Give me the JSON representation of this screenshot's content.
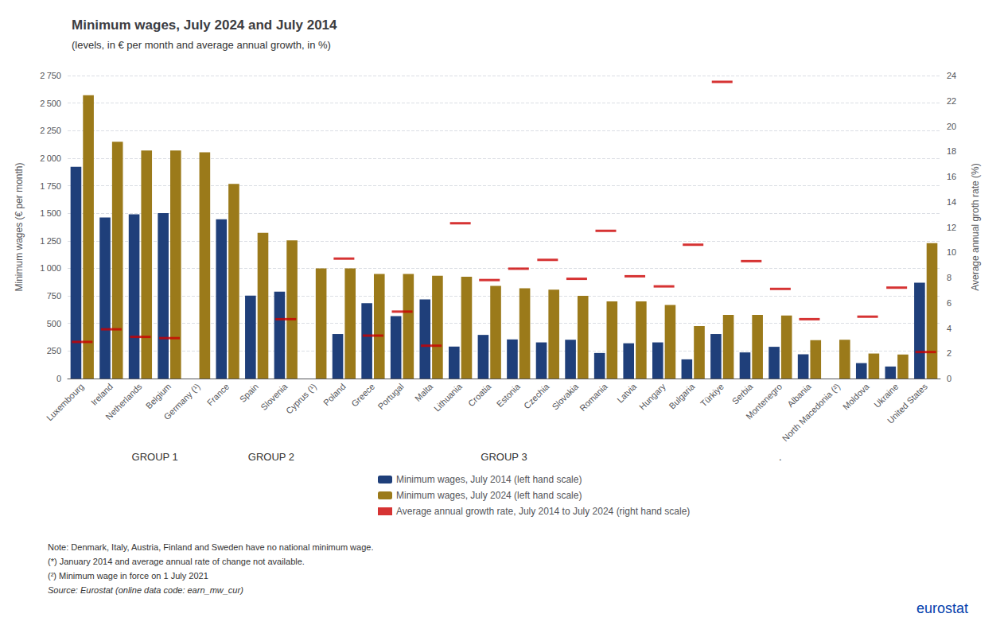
{
  "chart_data": {
    "type": "bar",
    "title": "Minimum wages, July 2024 and July 2014",
    "subtitle": "(levels, in € per month and average annual growth, in %)",
    "ylabel": "Minimum wages (€ per month)",
    "y2label": "Average annual groth rate (%)",
    "categories": [
      "Luxembourg",
      "Ireland",
      "Netherlands",
      "Belgium",
      "Germany (¹)",
      "France",
      "Spain",
      "Slovenia",
      "Cyprus (¹)",
      "Poland",
      "Greece",
      "Portugal",
      "Malta",
      "Lithuania",
      "Croatia",
      "Estonia",
      "Czechia",
      "Slovakia",
      "Romania",
      "Latvia",
      "Hungary",
      "Bulgaria",
      "Türkiye",
      "Serbia",
      "Montenegro",
      "Albania",
      "North Macedonia (²)",
      "Moldova",
      "Ukraine",
      "United States"
    ],
    "series": [
      {
        "name": "Minimum wages, July 2014 (left hand scale)",
        "color": "#1F3F7A",
        "type": "bar",
        "values": [
          1921,
          1462,
          1490,
          1502,
          null,
          1445,
          753,
          789,
          null,
          404,
          683,
          566,
          718,
          290,
          396,
          355,
          328,
          352,
          232,
          320,
          328,
          174,
          404,
          237,
          288,
          220,
          null,
          140,
          109,
          869
        ]
      },
      {
        "name": "Minimum wages, July 2024 (left hand scale)",
        "color": "#9B7A1A",
        "type": "bar",
        "values": [
          2571,
          2149,
          2069,
          2070,
          2054,
          1767,
          1323,
          1254,
          1000,
          1000,
          950,
          950,
          933,
          924,
          840,
          820,
          806,
          750,
          700,
          700,
          668,
          477,
          577,
          577,
          572,
          349,
          352,
          227,
          218,
          1228
        ]
      },
      {
        "name": "Average annual growth rate, July 2014 to July 2024 (right hand scale)",
        "color": "#CC0000",
        "type": "scatter",
        "marker": "dash",
        "axis": "y2",
        "values": [
          2.9,
          3.9,
          3.3,
          3.2,
          null,
          null,
          null,
          4.7,
          null,
          9.5,
          3.4,
          5.3,
          2.6,
          12.3,
          7.8,
          8.7,
          9.4,
          7.9,
          11.7,
          8.1,
          7.3,
          10.6,
          23.5,
          9.3,
          7.1,
          4.7,
          null,
          4.9,
          7.2,
          2.1
        ]
      }
    ],
    "ylim": [
      0,
      2750
    ],
    "yticks": [
      0,
      250,
      500,
      750,
      {
        "value": 1000,
        "label": "1 000"
      },
      {
        "value": 1250,
        "label": "1 250"
      },
      {
        "value": 1500,
        "label": "1 500"
      },
      {
        "value": 1750,
        "label": "1 750"
      },
      {
        "value": 2000,
        "label": "2 000"
      },
      {
        "value": 2250,
        "label": "2 250"
      },
      {
        "value": 2500,
        "label": "2 500"
      },
      {
        "value": 2750,
        "label": "2 750"
      }
    ],
    "y2lim": [
      0,
      24
    ],
    "y2ticks": [
      0,
      2,
      4,
      6,
      8,
      10,
      12,
      14,
      16,
      18,
      20,
      22,
      24
    ],
    "grid": true,
    "legend": "bottom",
    "annotations": [
      {
        "text": "GROUP 1",
        "x": 2.5
      },
      {
        "text": "GROUP 2",
        "x": 6.5
      },
      {
        "text": "GROUP 3",
        "x": 14.5
      },
      {
        "text": ".",
        "x": 24.0
      }
    ],
    "notes": [
      "Note: Denmark, Italy, Austria, Finland and Sweden have no national minimum wage.",
      "(*) January 2014 and average annual rate of change not available.",
      "(²) Minimum wage in force on 1 July 2021"
    ],
    "source": "Source: Eurostat (online data code: earn_mw_cur)",
    "logo_text": "eurostat"
  }
}
